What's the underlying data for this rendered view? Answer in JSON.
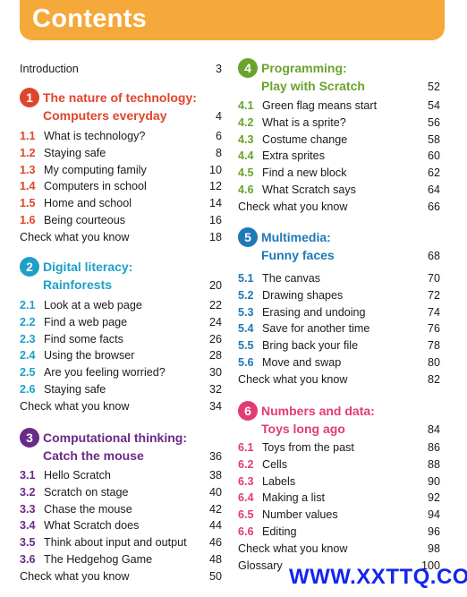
{
  "header": {
    "title": "Contents"
  },
  "left": {
    "intro": {
      "label": "Introduction",
      "page": "3"
    },
    "unit1": {
      "num": "1",
      "line1": "The nature of technology:",
      "line2": "Computers everyday",
      "page": "4",
      "color": "#e0452b",
      "items": [
        {
          "num": "1.1",
          "label": "What is technology?",
          "page": "6"
        },
        {
          "num": "1.2",
          "label": "Staying safe",
          "page": "8"
        },
        {
          "num": "1.3",
          "label": "My computing family",
          "page": "10"
        },
        {
          "num": "1.4",
          "label": "Computers in school",
          "page": "12"
        },
        {
          "num": "1.5",
          "label": "Home and school",
          "page": "14"
        },
        {
          "num": "1.6",
          "label": "Being courteous",
          "page": "16"
        }
      ],
      "check": {
        "label": "Check what you know",
        "page": "18"
      }
    },
    "unit2": {
      "num": "2",
      "line1": "Digital literacy:",
      "line2": "Rainforests",
      "page": "20",
      "color": "#1d9fc7",
      "items": [
        {
          "num": "2.1",
          "label": "Look at a web page",
          "page": "22"
        },
        {
          "num": "2.2",
          "label": "Find a web page",
          "page": "24"
        },
        {
          "num": "2.3",
          "label": "Find some facts",
          "page": "26"
        },
        {
          "num": "2.4",
          "label": "Using the browser",
          "page": "28"
        },
        {
          "num": "2.5",
          "label": "Are you feeling worried?",
          "page": "30"
        },
        {
          "num": "2.6",
          "label": "Staying safe",
          "page": "32"
        }
      ],
      "check": {
        "label": "Check what you know",
        "page": "34"
      }
    },
    "unit3": {
      "num": "3",
      "line1": "Computational thinking:",
      "line2": "Catch the mouse",
      "page": "36",
      "color": "#6a2a87",
      "items": [
        {
          "num": "3.1",
          "label": "Hello Scratch",
          "page": "38"
        },
        {
          "num": "3.2",
          "label": "Scratch on stage",
          "page": "40"
        },
        {
          "num": "3.3",
          "label": "Chase the mouse",
          "page": "42"
        },
        {
          "num": "3.4",
          "label": "What Scratch does",
          "page": "44"
        },
        {
          "num": "3.5",
          "label": "Think about input and output",
          "page": "46"
        },
        {
          "num": "3.6",
          "label": "The Hedgehog Game",
          "page": "48"
        }
      ],
      "check": {
        "label": "Check what you know",
        "page": "50"
      }
    }
  },
  "right": {
    "unit4": {
      "num": "4",
      "line1": "Programming:",
      "line2": "Play with Scratch",
      "page": "52",
      "color": "#6aa32c",
      "items": [
        {
          "num": "4.1",
          "label": "Green flag means start",
          "page": "54"
        },
        {
          "num": "4.2",
          "label": "What is a sprite?",
          "page": "56"
        },
        {
          "num": "4.3",
          "label": "Costume change",
          "page": "58"
        },
        {
          "num": "4.4",
          "label": "Extra sprites",
          "page": "60"
        },
        {
          "num": "4.5",
          "label": "Find a new block",
          "page": "62"
        },
        {
          "num": "4.6",
          "label": "What Scratch says",
          "page": "64"
        }
      ],
      "check": {
        "label": "Check what you know",
        "page": "66"
      }
    },
    "unit5": {
      "num": "5",
      "line1": "Multimedia:",
      "line2": "Funny faces",
      "page": "68",
      "color": "#1f78b8",
      "items": [
        {
          "num": "5.1",
          "label": "The canvas",
          "page": "70"
        },
        {
          "num": "5.2",
          "label": "Drawing shapes",
          "page": "72"
        },
        {
          "num": "5.3",
          "label": "Erasing and undoing",
          "page": "74"
        },
        {
          "num": "5.4",
          "label": "Save for another time",
          "page": "76"
        },
        {
          "num": "5.5",
          "label": "Bring back your file",
          "page": "78"
        },
        {
          "num": "5.6",
          "label": "Move and swap",
          "page": "80"
        }
      ],
      "check": {
        "label": "Check what you know",
        "page": "82"
      }
    },
    "unit6": {
      "num": "6",
      "line1": "Numbers and data:",
      "line2": "Toys long ago",
      "page": "84",
      "color": "#e23c73",
      "items": [
        {
          "num": "6.1",
          "label": "Toys from the past",
          "page": "86"
        },
        {
          "num": "6.2",
          "label": "Cells",
          "page": "88"
        },
        {
          "num": "6.3",
          "label": "Labels",
          "page": "90"
        },
        {
          "num": "6.4",
          "label": "Making a list",
          "page": "92"
        },
        {
          "num": "6.5",
          "label": "Number values",
          "page": "94"
        },
        {
          "num": "6.6",
          "label": "Editing",
          "page": "96"
        }
      ],
      "check": {
        "label": "Check what you know",
        "page": "98"
      },
      "glossary": {
        "label": "Glossary",
        "page": "100"
      }
    }
  },
  "watermark": {
    "text": "WWW.XXTTQ.COM"
  }
}
